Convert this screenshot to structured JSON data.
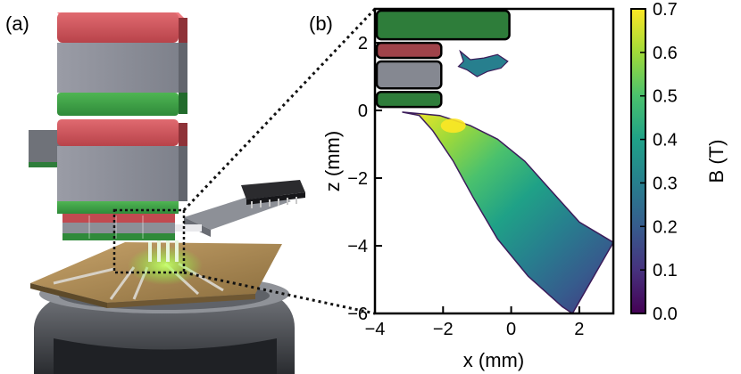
{
  "panel_a": {
    "label": "(a)"
  },
  "panel_b": {
    "label": "(b)",
    "colorbar": {
      "label": "B (T)",
      "min": 0.0,
      "max": 0.7,
      "ticks": [
        "0.0",
        "0.1",
        "0.2",
        "0.3",
        "0.4",
        "0.5",
        "0.6",
        "0.7"
      ],
      "colormap": [
        "#440154",
        "#46327e",
        "#365c8d",
        "#277f8e",
        "#1fa187",
        "#4ac16d",
        "#a0da39",
        "#fde725"
      ]
    }
  },
  "chart_data": {
    "type": "heatmap",
    "xlabel": "x (mm)",
    "ylabel": "z (mm)",
    "xlim": [
      -4,
      3
    ],
    "ylim": [
      -6,
      3
    ],
    "xticks": [
      "−4",
      "−2",
      "0",
      "2"
    ],
    "yticks": [
      "−6",
      "−4",
      "−2",
      "0",
      "2"
    ],
    "magnets": [
      {
        "name": "top-green",
        "x": [
          -4,
          0
        ],
        "z": [
          2.05,
          3
        ],
        "color": "#2e7d3a"
      },
      {
        "name": "red",
        "x": [
          -4,
          -2
        ],
        "z": [
          1.5,
          2.05
        ],
        "color": "#a0434a"
      },
      {
        "name": "grey",
        "x": [
          -4,
          -2
        ],
        "z": [
          0.6,
          1.5
        ],
        "color": "#858891"
      },
      {
        "name": "bottom-green",
        "x": [
          -4,
          -2
        ],
        "z": [
          0.05,
          0.6
        ],
        "color": "#2e7d3a"
      }
    ],
    "field_plume": {
      "upper_edge": [
        [
          -3.2,
          -0.05
        ],
        [
          -2.1,
          -0.15
        ],
        [
          -1.2,
          -0.45
        ],
        [
          -0.4,
          -0.85
        ],
        [
          0.4,
          -1.5
        ],
        [
          1.2,
          -2.4
        ],
        [
          2.0,
          -3.3
        ],
        [
          3.0,
          -3.9
        ]
      ],
      "lower_edge": [
        [
          -2.7,
          -0.15
        ],
        [
          -2.3,
          -0.6
        ],
        [
          -1.7,
          -1.5
        ],
        [
          -1.1,
          -2.6
        ],
        [
          -0.4,
          -3.8
        ],
        [
          0.5,
          -4.9
        ],
        [
          1.5,
          -5.8
        ],
        [
          1.8,
          -6.0
        ]
      ],
      "field_range_T": [
        0.05,
        0.7
      ]
    },
    "field_island": {
      "center": [
        -0.9,
        1.35
      ],
      "field_T": 0.25
    }
  }
}
